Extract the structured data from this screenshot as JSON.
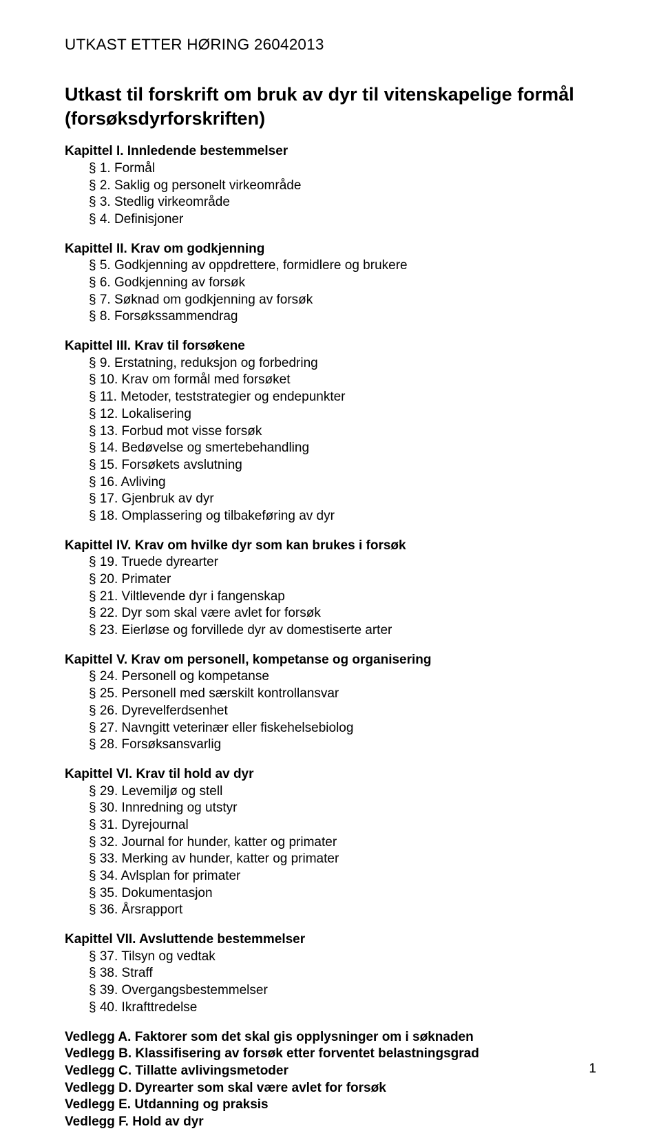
{
  "header": "UTKAST ETTER HØRING 26042013",
  "title_line1": "Utkast til forskrift om bruk av dyr til vitenskapelige formål",
  "title_line2": "(forsøksdyrforskriften)",
  "chapters": [
    {
      "title": "Kapittel I. Innledende bestemmelser",
      "items": [
        "§ 1. Formål",
        "§ 2. Saklig og personelt virkeområde",
        "§ 3. Stedlig virkeområde",
        "§ 4. Definisjoner"
      ]
    },
    {
      "title": "Kapittel II. Krav om godkjenning",
      "items": [
        "§ 5. Godkjenning av oppdrettere, formidlere og brukere",
        "§ 6. Godkjenning av forsøk",
        "§ 7. Søknad om godkjenning av forsøk",
        "§ 8. Forsøkssammendrag"
      ]
    },
    {
      "title": "Kapittel III. Krav til forsøkene",
      "items": [
        "§ 9. Erstatning, reduksjon og forbedring",
        "§ 10. Krav om formål med forsøket",
        "§ 11. Metoder, teststrategier og endepunkter",
        "§ 12. Lokalisering",
        "§ 13. Forbud mot visse forsøk",
        "§ 14. Bedøvelse og smertebehandling",
        "§ 15. Forsøkets avslutning",
        "§ 16. Avliving",
        "§ 17. Gjenbruk av dyr",
        "§ 18. Omplassering og tilbakeføring av dyr"
      ]
    },
    {
      "title": "Kapittel IV. Krav om hvilke dyr som kan brukes i forsøk",
      "items": [
        "§ 19. Truede dyrearter",
        "§ 20. Primater",
        "§ 21. Viltlevende dyr i fangenskap",
        "§ 22. Dyr som skal være avlet for forsøk",
        "§ 23. Eierløse og forvillede dyr av domestiserte arter"
      ]
    },
    {
      "title": "Kapittel V. Krav om personell, kompetanse og organisering",
      "items": [
        "§ 24. Personell og kompetanse",
        "§ 25. Personell med særskilt kontrollansvar",
        "§ 26. Dyrevelferdsenhet",
        "§ 27. Navngitt veterinær eller fiskehelsebiolog",
        "§ 28. Forsøksansvarlig"
      ]
    },
    {
      "title": "Kapittel VI. Krav til hold av dyr",
      "items": [
        "§ 29. Levemiljø og stell",
        "§ 30. Innredning og utstyr",
        "§ 31. Dyrejournal",
        "§ 32. Journal for hunder, katter og primater",
        "§ 33. Merking av hunder, katter og primater",
        "§ 34. Avlsplan for primater",
        "§ 35. Dokumentasjon",
        "§ 36. Årsrapport"
      ]
    },
    {
      "title": "Kapittel VII. Avsluttende bestemmelser",
      "items": [
        "§ 37. Tilsyn og vedtak",
        "§ 38. Straff",
        "§ 39. Overgangsbestemmelser",
        "§ 40. Ikrafttredelse"
      ]
    }
  ],
  "appendices": [
    {
      "label": "Vedlegg A.",
      "text": " Faktorer som det skal gis opplysninger om i søknaden"
    },
    {
      "label": "Vedlegg B.",
      "text": " Klassifisering av forsøk etter forventet belastningsgrad"
    },
    {
      "label": "Vedlegg C.",
      "text": " Tillatte avlivingsmetoder"
    },
    {
      "label": "Vedlegg D.",
      "text": " Dyrearter som skal være avlet for forsøk"
    },
    {
      "label": "Vedlegg E.",
      "text": " Utdanning og praksis"
    },
    {
      "label": "Vedlegg F.",
      "text": " Hold av dyr"
    }
  ],
  "page_number": "1"
}
